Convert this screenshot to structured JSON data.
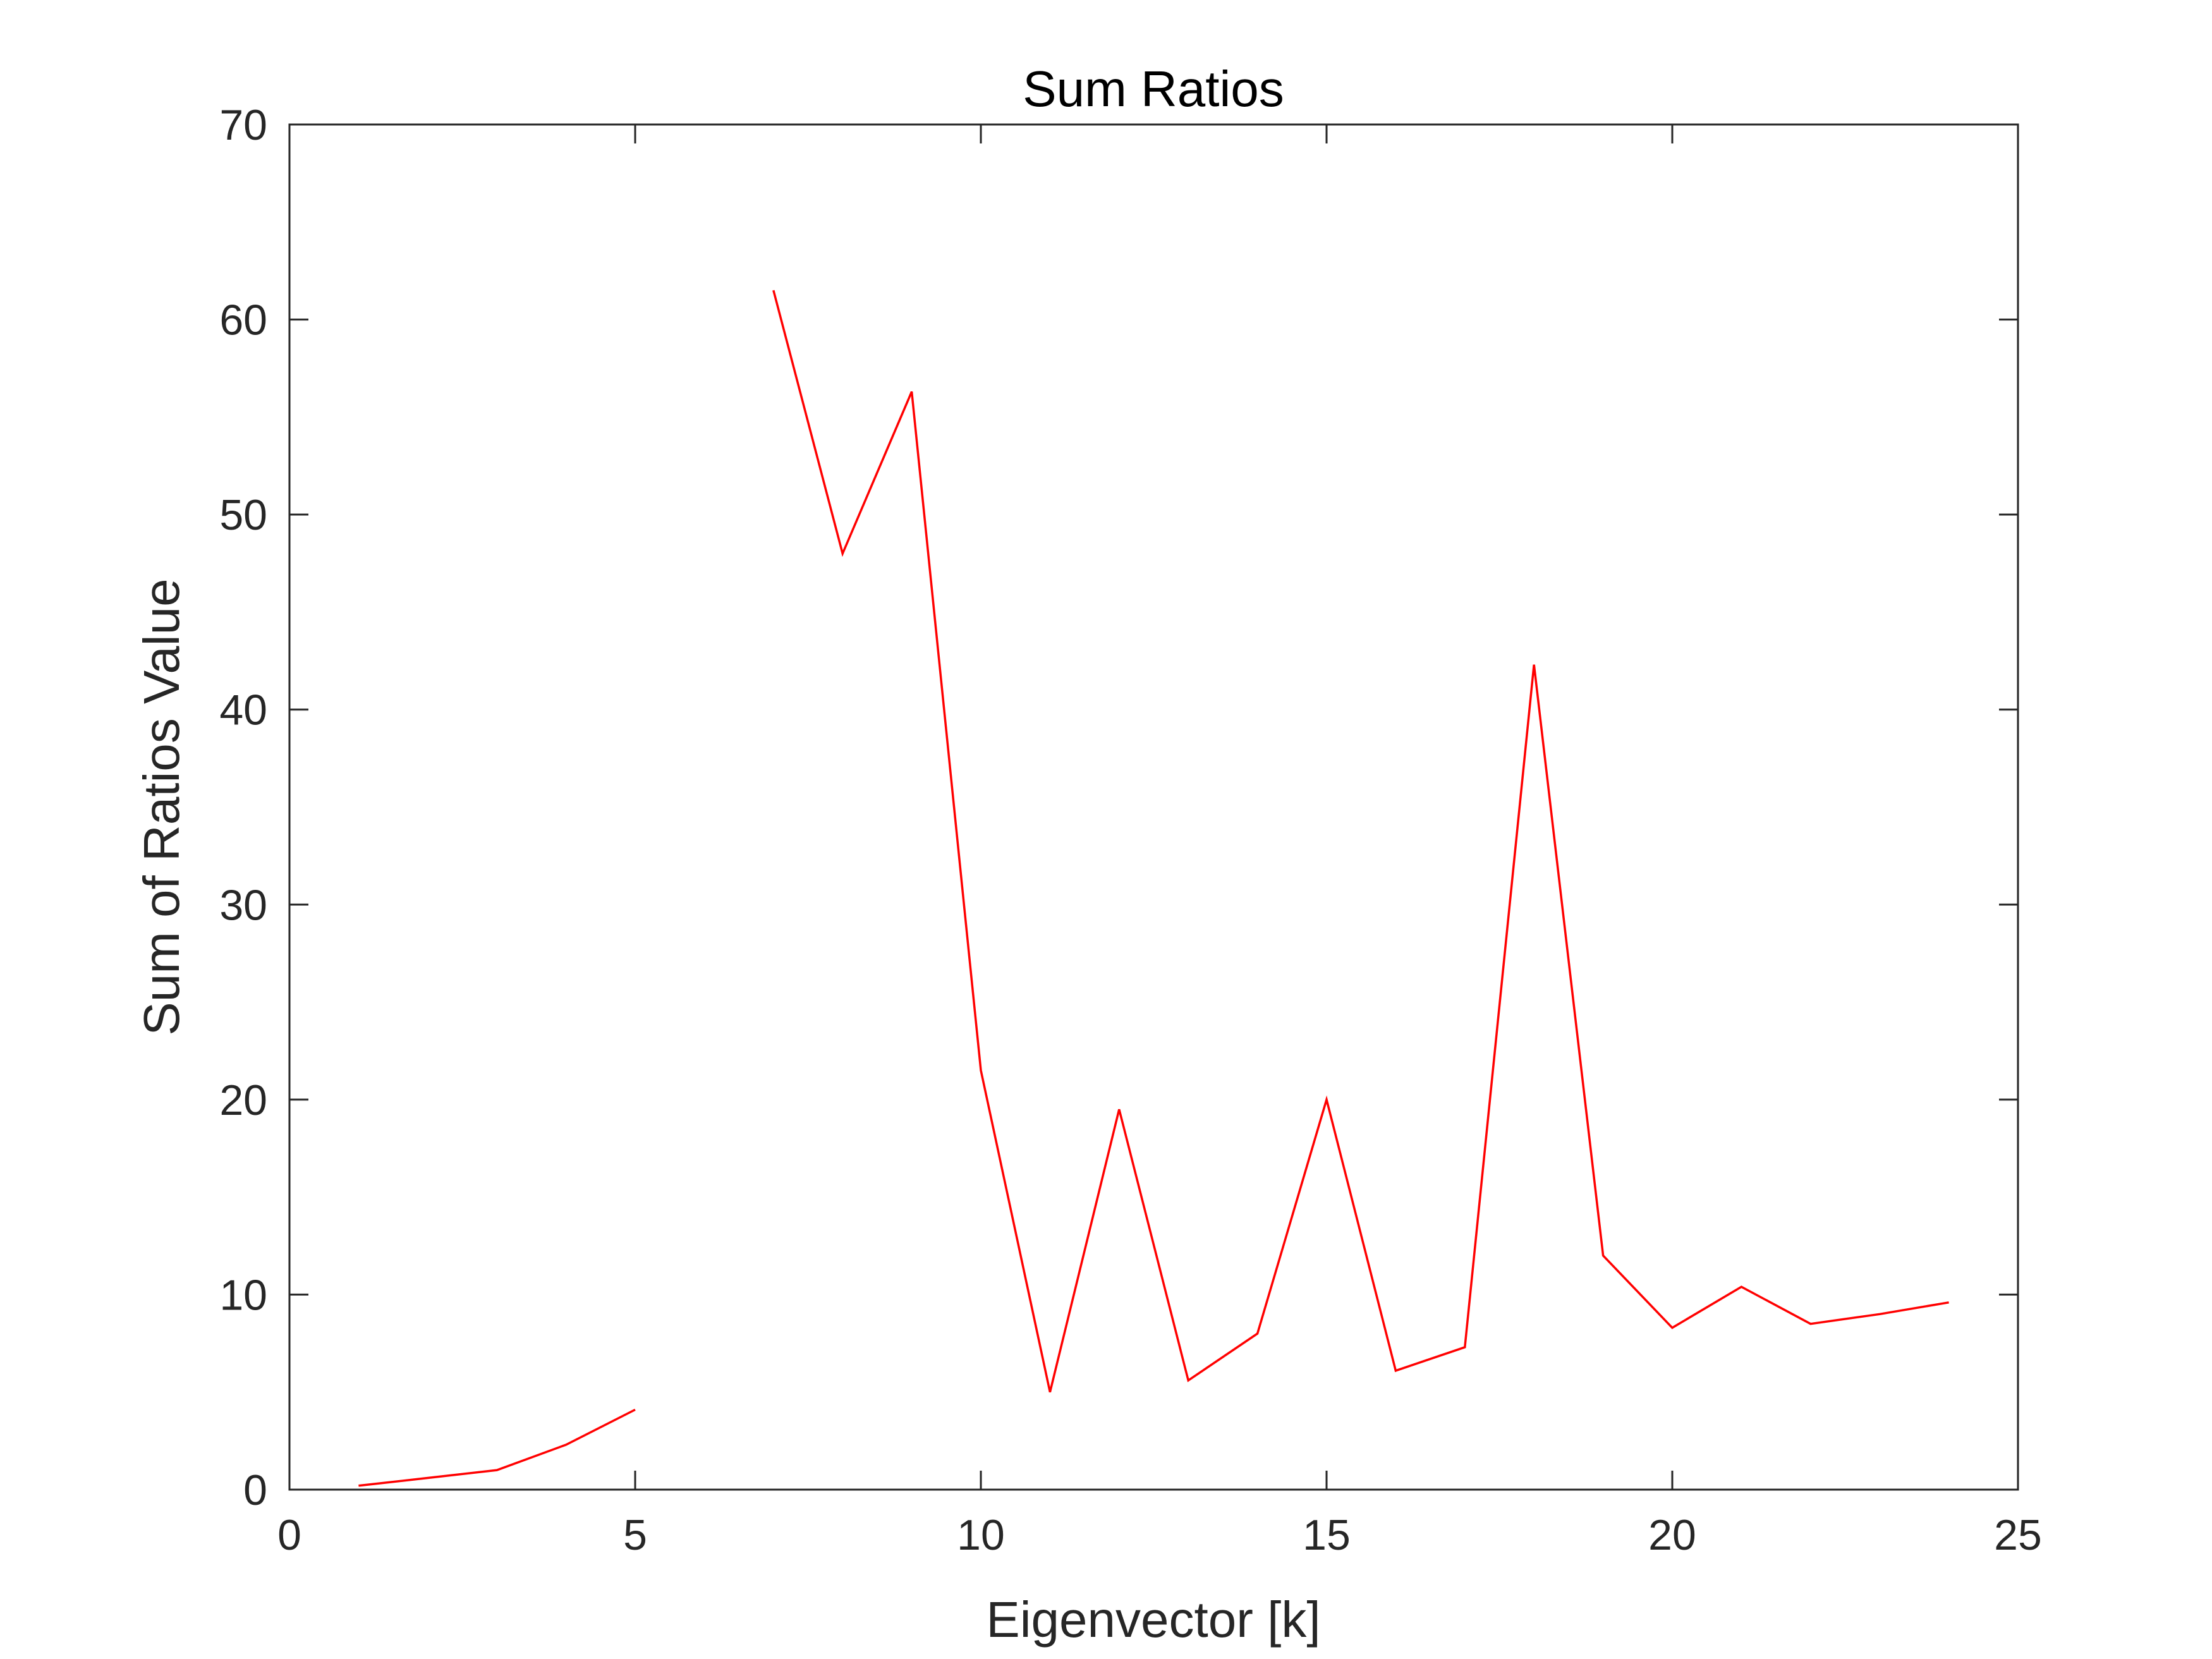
{
  "chart_data": {
    "type": "line",
    "title": "Sum Ratios",
    "xlabel": "Eigenvector [k]",
    "ylabel": "Sum of Ratios Value",
    "xlim": [
      0,
      25
    ],
    "ylim": [
      0,
      70
    ],
    "xticks": [
      0,
      5,
      10,
      15,
      20,
      25
    ],
    "yticks": [
      0,
      10,
      20,
      30,
      40,
      50,
      60,
      70
    ],
    "grid": false,
    "series": [
      {
        "color": "#ff0000",
        "x": [
          1,
          2,
          3,
          4,
          5,
          6,
          7,
          8,
          9,
          10,
          11,
          12,
          13,
          14,
          15,
          16,
          17,
          18,
          19,
          20,
          21,
          22,
          23,
          24
        ],
        "y": [
          0.2,
          0.6,
          1.0,
          2.3,
          4.1,
          null,
          61.5,
          48.0,
          56.3,
          21.5,
          5.0,
          19.5,
          5.6,
          8.0,
          20.0,
          6.1,
          7.3,
          42.3,
          12.0,
          8.3,
          10.4,
          8.5,
          9.0,
          9.6
        ]
      }
    ]
  }
}
